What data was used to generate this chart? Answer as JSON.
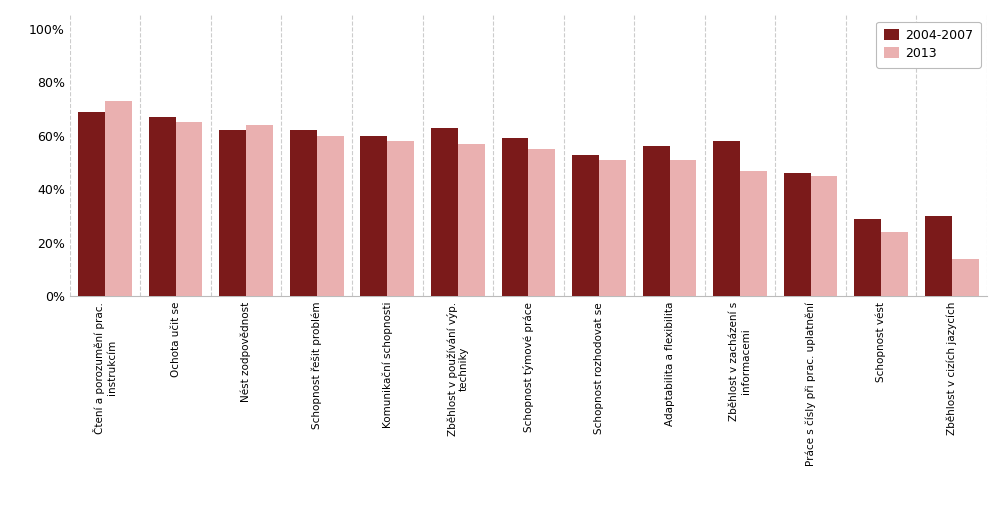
{
  "categories": [
    "Čtení a porozumění prac.\ninstrukcím",
    "Ochota učit se",
    "Nést zodpovědnost",
    "Schopnost řešit problém",
    "Komunikační schopnosti",
    "Zběhlost v používání výp.\ntechniky",
    "Schopnost týmové práce",
    "Schopnost rozhodovat se",
    "Adaptabilita a flexibilita",
    "Zběhlost v zacházení s\ninformacemi",
    "Práce s čísly při prac. uplatnění",
    "Schopnost vést",
    "Zběhlost v cizích jazycích"
  ],
  "values_2004_2007": [
    0.69,
    0.67,
    0.62,
    0.62,
    0.6,
    0.63,
    0.59,
    0.53,
    0.56,
    0.58,
    0.46,
    0.29,
    0.3
  ],
  "values_2013": [
    0.73,
    0.65,
    0.64,
    0.6,
    0.58,
    0.57,
    0.55,
    0.51,
    0.51,
    0.47,
    0.45,
    0.24,
    0.14
  ],
  "color_2004_2007": "#7B1A1A",
  "color_2013": "#EAB0B0",
  "legend_label_1": "2004-2007",
  "legend_label_2": "2013",
  "ylim": [
    0,
    1.05
  ],
  "yticks": [
    0.0,
    0.2,
    0.4,
    0.6,
    0.8,
    1.0
  ],
  "ytick_labels": [
    "0%",
    "20%",
    "40%",
    "60%",
    "80%",
    "100%"
  ],
  "background_color": "#FFFFFF",
  "grid_color": "#CCCCCC",
  "bar_width": 0.38
}
